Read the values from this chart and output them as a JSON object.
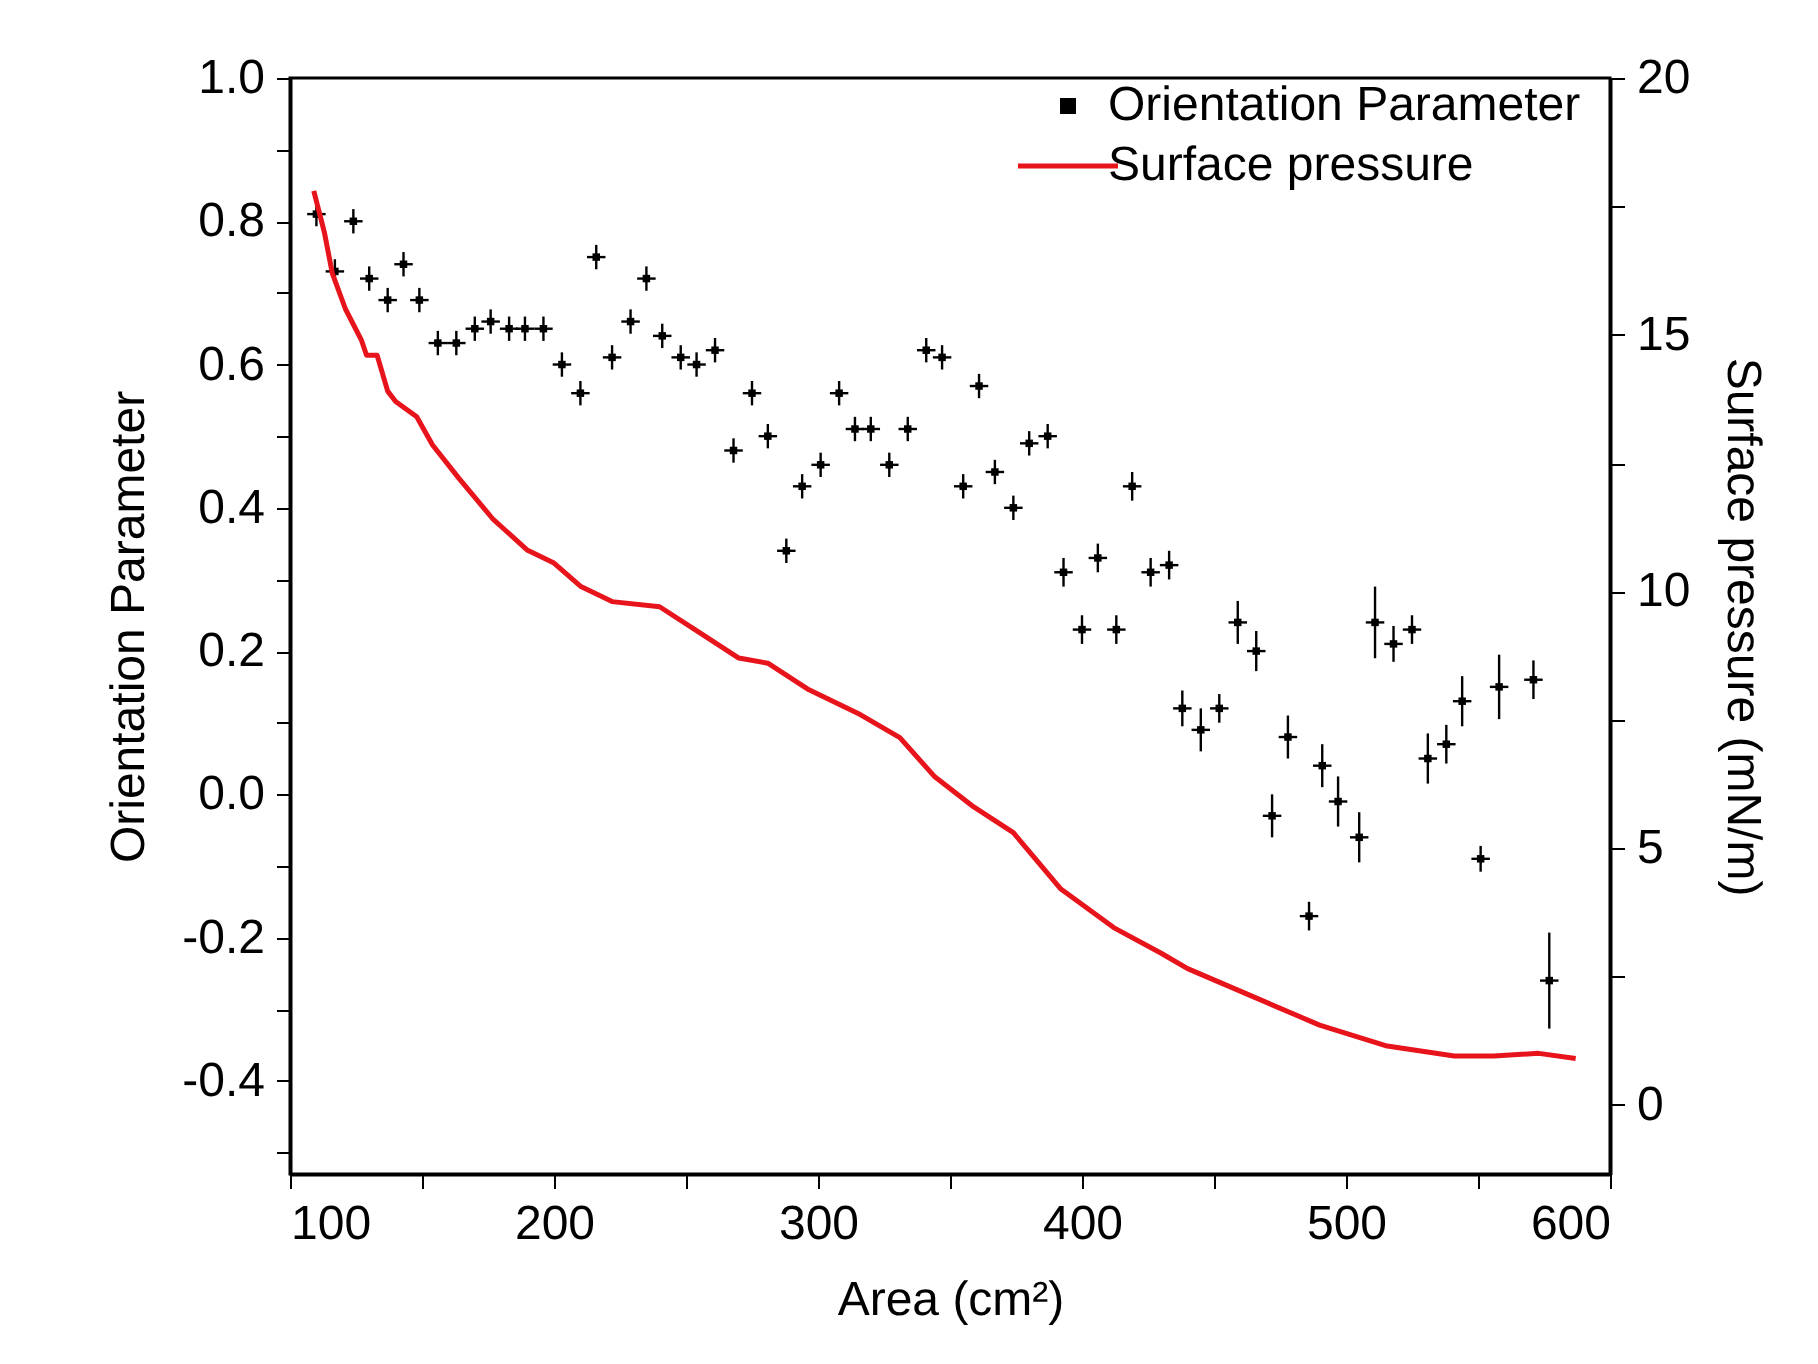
{
  "chart_data": {
    "type": "scatter",
    "xlabel": "Area (cm²)",
    "ylabel": "Orientation Parameter",
    "y2label": "Surface pressure (mN/m)",
    "xlim": [
      100,
      600
    ],
    "xticks": [
      100,
      {
        "value": 150,
        "label": null
      },
      200,
      {
        "value": 250,
        "label": null
      },
      300,
      {
        "value": 350,
        "label": null
      },
      400,
      {
        "value": 450,
        "label": null
      },
      500,
      {
        "value": 550,
        "label": null
      },
      600
    ],
    "ylim": [
      -0.53,
      1.0
    ],
    "yticks": [
      {
        "value": -0.5,
        "label": null
      },
      {
        "value": -0.4,
        "label": "-0.4"
      },
      {
        "value": -0.3,
        "label": null
      },
      {
        "value": -0.2,
        "label": "-0.2"
      },
      {
        "value": -0.1,
        "label": null
      },
      {
        "value": 0,
        "label": "0.0"
      },
      {
        "value": 0.1,
        "label": null
      },
      {
        "value": 0.2,
        "label": "0.2"
      },
      {
        "value": 0.3,
        "label": null
      },
      {
        "value": 0.4,
        "label": "0.4"
      },
      {
        "value": 0.5,
        "label": null
      },
      {
        "value": 0.6,
        "label": "0.6"
      },
      {
        "value": 0.7,
        "label": null
      },
      {
        "value": 0.8,
        "label": "0.8"
      },
      {
        "value": 0.9,
        "label": null
      },
      {
        "value": 1.0,
        "label": "1.0"
      }
    ],
    "y2lim": [
      -1.35,
      20
    ],
    "y2ticks": [
      0,
      {
        "value": 2.5,
        "label": null
      },
      5,
      {
        "value": 7.5,
        "label": null
      },
      10,
      {
        "value": 12.5,
        "label": null
      },
      15,
      {
        "value": 17.5,
        "label": null
      },
      20
    ],
    "legend": "top right",
    "grid": false,
    "series": [
      {
        "name": "Orientation Parameter",
        "type": "scatter",
        "marker": "square",
        "color": "#000000",
        "x": [
          110,
          117,
          124,
          130,
          137,
          143,
          149,
          156,
          163,
          170,
          176,
          183,
          189,
          196,
          203,
          210,
          216,
          222,
          229,
          235,
          241,
          248,
          254,
          261,
          268,
          275,
          281,
          288,
          294,
          301,
          308,
          314,
          320,
          327,
          334,
          341,
          347,
          355,
          361,
          367,
          374,
          380,
          387,
          393,
          400,
          406,
          413,
          419,
          426,
          433,
          438,
          445,
          452,
          459,
          466,
          472,
          478,
          486,
          491,
          497,
          505,
          511,
          518,
          525,
          531,
          538,
          544,
          551,
          558,
          571,
          577
        ],
        "values": [
          0.81,
          0.73,
          0.8,
          0.72,
          0.69,
          0.74,
          0.69,
          0.63,
          0.63,
          0.65,
          0.66,
          0.65,
          0.65,
          0.65,
          0.6,
          0.56,
          0.75,
          0.61,
          0.66,
          0.72,
          0.64,
          0.61,
          0.6,
          0.62,
          0.48,
          0.56,
          0.5,
          0.34,
          0.43,
          0.46,
          0.56,
          0.51,
          0.51,
          0.46,
          0.51,
          0.62,
          0.61,
          0.43,
          0.57,
          0.45,
          0.4,
          0.49,
          0.5,
          0.31,
          0.23,
          0.33,
          0.23,
          0.43,
          0.31,
          0.32,
          0.12,
          0.09,
          0.12,
          0.24,
          0.2,
          -0.03,
          0.08,
          -0.17,
          0.04,
          -0.01,
          -0.06,
          0.24,
          0.21,
          0.23,
          0.05,
          0.07,
          0.13,
          -0.09,
          0.15,
          0.16,
          -0.26
        ],
        "errors": [
          0.017,
          0.017,
          0.017,
          0.017,
          0.017,
          0.017,
          0.017,
          0.017,
          0.017,
          0.017,
          0.017,
          0.017,
          0.017,
          0.017,
          0.017,
          0.017,
          0.017,
          0.017,
          0.017,
          0.017,
          0.017,
          0.017,
          0.017,
          0.017,
          0.017,
          0.017,
          0.017,
          0.017,
          0.017,
          0.017,
          0.017,
          0.017,
          0.017,
          0.017,
          0.017,
          0.017,
          0.017,
          0.017,
          0.017,
          0.017,
          0.017,
          0.017,
          0.017,
          0.02,
          0.02,
          0.02,
          0.02,
          0.02,
          0.02,
          0.02,
          0.025,
          0.03,
          0.02,
          0.03,
          0.028,
          0.03,
          0.03,
          0.02,
          0.03,
          0.035,
          0.035,
          0.05,
          0.025,
          0.02,
          0.035,
          0.027,
          0.035,
          0.018,
          0.045,
          0.027,
          0.067
        ],
        "xerrors": [
          3.5,
          3.5,
          3.5,
          3.5,
          3.5,
          3.5,
          3.5,
          3.5,
          3.5,
          3.5,
          3.5,
          3.5,
          3.5,
          3.5,
          3.5,
          3.5,
          3.5,
          3.5,
          3.5,
          3.5,
          3.5,
          3.5,
          3.5,
          3.5,
          3.5,
          3.5,
          3.5,
          3.5,
          3.5,
          3.5,
          3.5,
          3.5,
          3.5,
          3.5,
          3.5,
          3.5,
          3.5,
          3.5,
          3.5,
          3.5,
          3.5,
          3.5,
          3.5,
          3.5,
          3.5,
          3.5,
          3.5,
          3.5,
          3.5,
          3.5,
          3.5,
          3.5,
          3.5,
          3.5,
          3.5,
          3.5,
          3.5,
          3.5,
          3.5,
          3.5,
          3.5,
          3.5,
          3.5,
          3.5,
          3.5,
          3.5,
          3.5,
          3.5,
          3.5,
          3.5,
          3.5
        ]
      },
      {
        "name": "Surface pressure",
        "type": "line",
        "marker": "none",
        "axis": "y2",
        "color": "#e8141b",
        "x": [
          109,
          113,
          116,
          121,
          127,
          129,
          133,
          137,
          140,
          148,
          154,
          164,
          177,
          190,
          200,
          210,
          222,
          240,
          255,
          270,
          281,
          296,
          316,
          331,
          344,
          359,
          374,
          392,
          412,
          430,
          440,
          465,
          490,
          515,
          541,
          556,
          573,
          587
        ],
        "values": [
          17.8,
          17.0,
          16.2,
          15.5,
          14.9,
          14.6,
          14.6,
          13.9,
          13.7,
          13.4,
          12.85,
          12.2,
          11.4,
          10.8,
          10.55,
          10.1,
          9.8,
          9.7,
          9.2,
          8.7,
          8.6,
          8.1,
          7.6,
          7.15,
          6.4,
          5.8,
          5.3,
          4.2,
          3.45,
          2.95,
          2.65,
          2.1,
          1.55,
          1.15,
          0.95,
          0.95,
          1.0,
          0.9
        ]
      }
    ]
  }
}
